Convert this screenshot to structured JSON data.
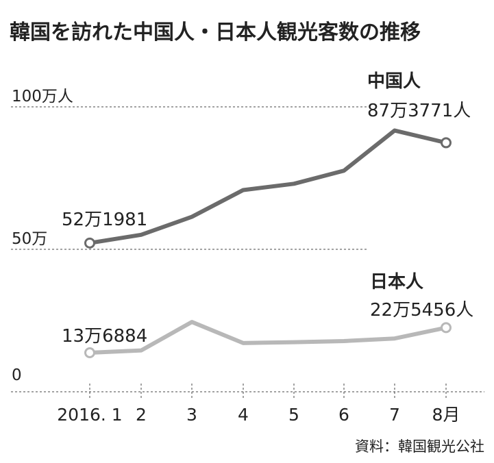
{
  "chart_data": {
    "type": "line",
    "title": "韓国を訪れた中国人・日本人観光客数の推移",
    "categories": [
      "2016. 1",
      "2",
      "3",
      "4",
      "5",
      "6",
      "7",
      "8月"
    ],
    "y_unit_note": "万人",
    "ylim": [
      0,
      100
    ],
    "y_ticks": [
      {
        "value": 100,
        "label": "100万人"
      },
      {
        "value": 50,
        "label": "50万"
      },
      {
        "value": 0,
        "label": "0"
      }
    ],
    "grid": "dashed horizontal",
    "series": [
      {
        "name": "中国人",
        "color": "#6b6b6b",
        "values": [
          52.2,
          55.1,
          61.4,
          70.8,
          73.0,
          77.6,
          91.7,
          87.4
        ],
        "start_label": "52万1981",
        "end_label": "87万3771人"
      },
      {
        "name": "日本人",
        "color": "#b8b8b8",
        "values": [
          13.7,
          14.5,
          24.5,
          17.1,
          17.4,
          17.8,
          18.7,
          22.5
        ],
        "start_label": "13万6884",
        "end_label": "22万5456人"
      }
    ],
    "source": "資料：韓国観光公社"
  }
}
